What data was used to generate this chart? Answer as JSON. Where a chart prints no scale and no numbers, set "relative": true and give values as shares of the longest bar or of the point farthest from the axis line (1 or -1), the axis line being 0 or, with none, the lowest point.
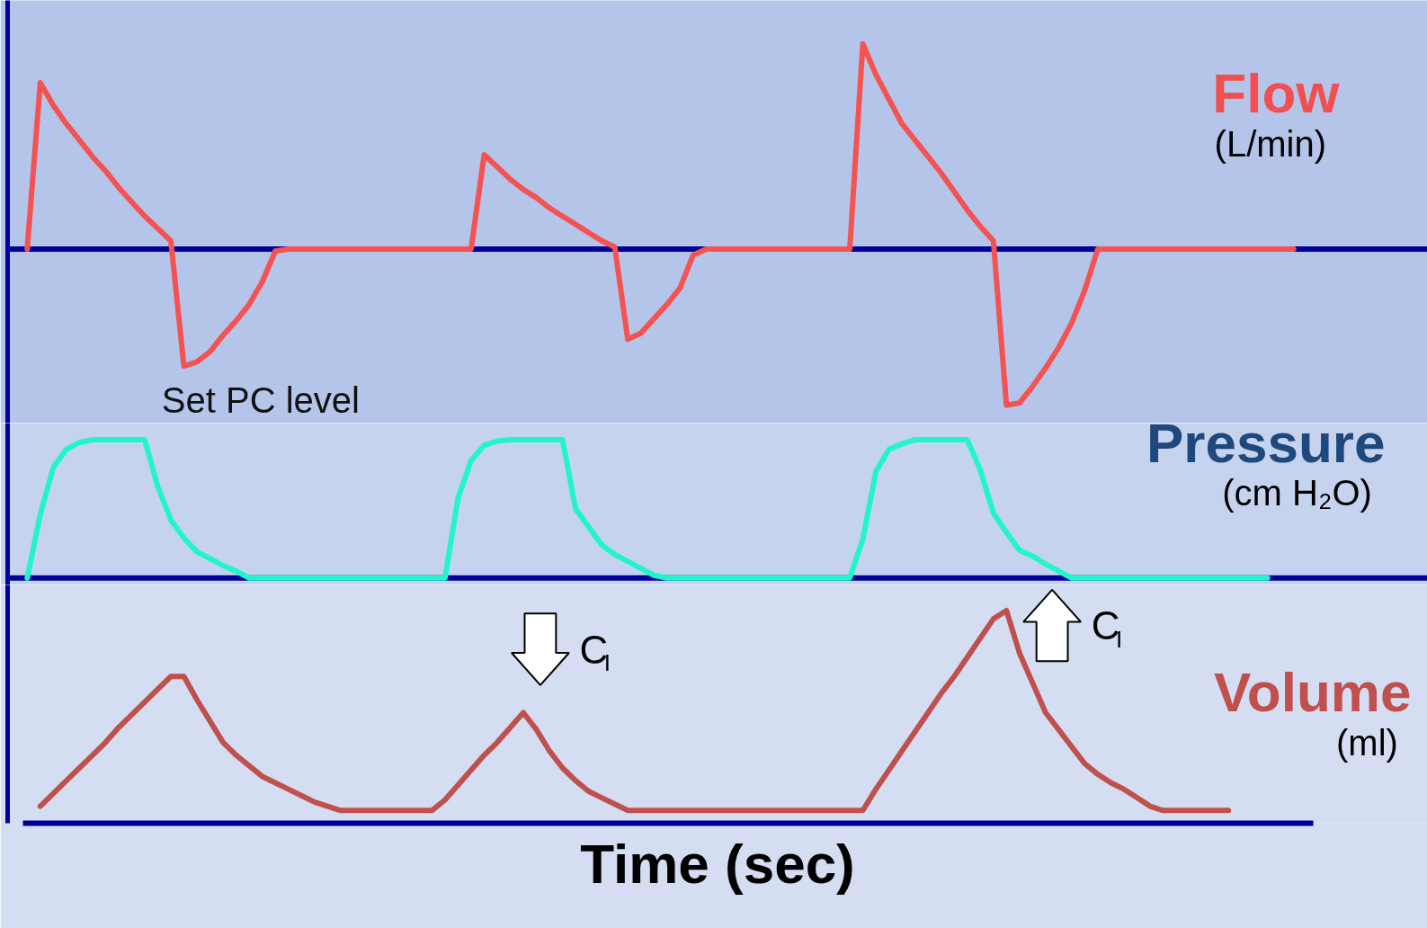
{
  "chart_data": [
    {
      "type": "line",
      "title": "Flow",
      "ylabel": "(L/min)",
      "relative": true,
      "categories": [
        null,
        null,
        null,
        null,
        null,
        null,
        null,
        null,
        null,
        null,
        null,
        null,
        null,
        null,
        null,
        null,
        null,
        null,
        null,
        null,
        null,
        null,
        null,
        null,
        null,
        null,
        null,
        null,
        null,
        null,
        null,
        null,
        null,
        null,
        null,
        null,
        null,
        null,
        null,
        null,
        null,
        null,
        null,
        null,
        null,
        null,
        null,
        null,
        null,
        null,
        null,
        null,
        null,
        null,
        null,
        null,
        null,
        null,
        null,
        null,
        null,
        null,
        null,
        null,
        null,
        null,
        null,
        null,
        null,
        null,
        null,
        null,
        null,
        null,
        null,
        null,
        null,
        null,
        null,
        null,
        null,
        null,
        null,
        null,
        null,
        null,
        null,
        null,
        null,
        null,
        null,
        null,
        null,
        null,
        null,
        null,
        null,
        null,
        null,
        null
      ],
      "series": [
        {
          "color": "#f55252",
          "values": [
            null,
            0,
            0.81,
            0.7,
            0.61,
            0.53,
            0.45,
            0.38,
            0.3,
            0.23,
            0.16,
            0.1,
            0.04,
            -0.57,
            -0.55,
            -0.5,
            -0.42,
            -0.35,
            -0.27,
            -0.16,
            -0.01,
            0,
            0,
            0,
            0,
            0,
            0,
            0,
            0,
            0,
            0,
            0,
            0,
            0,
            0,
            0,
            0.46,
            0.4,
            0.34,
            0.29,
            0.25,
            0.2,
            0.16,
            0.12,
            0.08,
            0.04,
            0.01,
            -0.44,
            -0.41,
            -0.34,
            -0.27,
            -0.19,
            -0.03,
            0,
            0,
            0,
            0,
            0,
            0,
            0,
            0,
            0,
            0,
            0,
            0,
            1,
            0.85,
            0.73,
            0.61,
            0.53,
            0.45,
            0.37,
            0.28,
            0.19,
            0.11,
            0.04,
            -0.76,
            -0.75,
            -0.67,
            -0.58,
            -0.48,
            -0.36,
            -0.2,
            0,
            0,
            0,
            0,
            0,
            0,
            0,
            0,
            0,
            0,
            0,
            0,
            0,
            0,
            0,
            0,
            null
          ]
        }
      ],
      "ref_lines": [
        {
          "axis": "y",
          "value": 0,
          "color": "#000099"
        }
      ],
      "annotations": [
        "Set PC level"
      ]
    },
    {
      "type": "line",
      "title": "Pressure",
      "ylabel": "(cm H₂O)",
      "relative": true,
      "ref_lines": [
        {
          "axis": "y",
          "value": 0,
          "color": "#000099"
        }
      ],
      "categories": [
        null,
        null,
        null,
        null,
        null,
        null,
        null,
        null,
        null,
        null,
        null,
        null,
        null,
        null,
        null,
        null,
        null,
        null,
        null,
        null,
        null,
        null,
        null,
        null,
        null,
        null,
        null,
        null,
        null,
        null,
        null,
        null,
        null,
        null,
        null,
        null,
        null,
        null,
        null,
        null,
        null,
        null,
        null,
        null,
        null,
        null,
        null,
        null,
        null,
        null,
        null,
        null,
        null,
        null,
        null,
        null,
        null,
        null,
        null,
        null,
        null,
        null,
        null,
        null,
        null,
        null,
        null,
        null,
        null,
        null,
        null,
        null,
        null,
        null,
        null,
        null,
        null,
        null,
        null,
        null,
        null,
        null,
        null,
        null,
        null,
        null,
        null,
        null,
        null,
        null,
        null,
        null,
        null,
        null,
        null,
        null,
        null,
        null,
        null,
        null
      ],
      "series": [
        {
          "color": "#22f5cc",
          "values": [
            null,
            0,
            0.46,
            0.8,
            0.93,
            0.98,
            1,
            1,
            1,
            1,
            1,
            0.66,
            0.42,
            0.29,
            0.19,
            0.14,
            0.09,
            0.05,
            0,
            0,
            0,
            0,
            0,
            0,
            0,
            0,
            0,
            0,
            0,
            0,
            0,
            0,
            0,
            0,
            0.58,
            0.85,
            0.96,
            0.99,
            1,
            1,
            1,
            1,
            1,
            0.5,
            0.37,
            0.24,
            0.17,
            0.12,
            0.07,
            0.02,
            0,
            0,
            0,
            0,
            0,
            0,
            0,
            0,
            0,
            0,
            0,
            0,
            0,
            0,
            0,
            0.28,
            0.77,
            0.93,
            0.97,
            1,
            1,
            1,
            1,
            1,
            0.78,
            0.47,
            0.33,
            0.2,
            0.16,
            0.1,
            0.05,
            0,
            0,
            0,
            0,
            0,
            0,
            0,
            0,
            0,
            0,
            0,
            0,
            0,
            0,
            0,
            0,
            null,
            null,
            null
          ]
        }
      ]
    },
    {
      "type": "line",
      "title": "Volume",
      "ylabel": "(ml)",
      "xlabel": "Time (sec)",
      "relative": true,
      "categories": [
        null,
        null,
        null,
        null,
        null,
        null,
        null,
        null,
        null,
        null,
        null,
        null,
        null,
        null,
        null,
        null,
        null,
        null,
        null,
        null,
        null,
        null,
        null,
        null,
        null,
        null,
        null,
        null,
        null,
        null,
        null,
        null,
        null,
        null,
        null,
        null,
        null,
        null,
        null,
        null,
        null,
        null,
        null,
        null,
        null,
        null,
        null,
        null,
        null,
        null,
        null,
        null,
        null,
        null,
        null,
        null,
        null,
        null,
        null,
        null,
        null,
        null,
        null,
        null,
        null,
        null,
        null,
        null,
        null,
        null,
        null,
        null,
        null,
        null,
        null,
        null,
        null,
        null,
        null,
        null,
        null,
        null,
        null,
        null,
        null,
        null,
        null,
        null,
        null,
        null,
        null,
        null,
        null,
        null,
        null,
        null,
        null,
        null,
        null,
        null
      ],
      "series": [
        {
          "color": "#c0504d",
          "values": [
            null,
            null,
            0.08,
            0.14,
            0.2,
            0.26,
            0.32,
            0.38,
            0.45,
            0.51,
            0.57,
            0.63,
            0.69,
            0.69,
            0.58,
            0.48,
            0.38,
            0.32,
            0.27,
            0.22,
            0.19,
            0.16,
            0.13,
            0.1,
            0.08,
            0.06,
            0.06,
            0.06,
            0.06,
            0.06,
            0.06,
            0.06,
            0.06,
            0.11,
            0.18,
            0.25,
            0.32,
            0.38,
            0.45,
            0.52,
            0.44,
            0.34,
            0.26,
            0.2,
            0.15,
            0.12,
            0.09,
            0.06,
            0.06,
            0.06,
            0.06,
            0.06,
            0.06,
            0.06,
            0.06,
            0.06,
            0.06,
            0.06,
            0.06,
            0.06,
            0.06,
            0.06,
            0.06,
            0.06,
            0.06,
            0.06,
            0.16,
            0.25,
            0.34,
            0.43,
            0.52,
            0.61,
            0.69,
            0.78,
            0.87,
            0.96,
            1,
            0.8,
            0.66,
            0.52,
            0.44,
            0.36,
            0.28,
            0.23,
            0.19,
            0.16,
            0.12,
            0.08,
            0.06,
            0.06,
            0.06,
            0.06,
            0.06,
            0.06,
            null,
            null,
            null,
            null,
            null,
            null
          ]
        }
      ],
      "annotations": [
        "C$_{I}$",
        "C$_{I}$"
      ]
    }
  ]
}
